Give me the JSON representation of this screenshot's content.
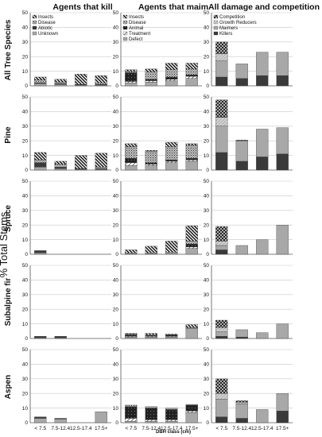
{
  "figure": {
    "ylabel": "% Total Stems",
    "xlabel": "DBH class (cm)"
  },
  "chart_data": {
    "type": "bar",
    "stacked": true,
    "categories": [
      "< 7.5",
      "7.5-12.4",
      "12.5-17.4",
      "17.5+"
    ],
    "ylim": [
      0,
      50
    ],
    "yticks": [
      0,
      10,
      20,
      30,
      40,
      50
    ],
    "grid": true,
    "xlabel": "DBH class (cm)",
    "ylabel": "% Total Stems",
    "columns": [
      {
        "title": "Agents that kill",
        "legend": [
          "Insects",
          "Disease",
          "Abiotic",
          "Unknown"
        ],
        "series_keys": [
          "Unknown",
          "Abiotic",
          "Disease",
          "Insects"
        ]
      },
      {
        "title": "Agents that maim",
        "legend": [
          "Insects",
          "Disease",
          "Animal",
          "Treatment",
          "Defect"
        ],
        "series_keys": [
          "Defect",
          "Treatment",
          "Animal",
          "Disease",
          "Insects"
        ]
      },
      {
        "title": "All damage and competition",
        "legend": [
          "Competition",
          "Growth Reducers",
          "Maimers",
          "Killers"
        ],
        "series_keys": [
          "Killers",
          "Maimers",
          "Growth Reducers",
          "Competition"
        ]
      }
    ],
    "rows": [
      {
        "species": "All Tree Species",
        "panels": [
          {
            "series": [
              {
                "name": "Unknown",
                "values": [
                  1.5,
                  1,
                  0.5,
                  0.5
                ]
              },
              {
                "name": "Abiotic",
                "values": [
                  0.5,
                  0.5,
                  0.5,
                  0.5
                ]
              },
              {
                "name": "Disease",
                "values": [
                  2,
                  1,
                  0,
                  1
                ]
              },
              {
                "name": "Insects",
                "values": [
                  2,
                  2,
                  7,
                  5
                ]
              }
            ]
          },
          {
            "series": [
              {
                "name": "Defect",
                "values": [
                  2,
                  2.5,
                  3.5,
                  5
                ]
              },
              {
                "name": "Treatment",
                "values": [
                  1,
                  1,
                  1,
                  1.5
                ]
              },
              {
                "name": "Animal",
                "values": [
                  6,
                  1,
                  1.5,
                  1
                ]
              },
              {
                "name": "Disease",
                "values": [
                  1,
                  5,
                  5,
                  4
                ]
              },
              {
                "name": "Insects",
                "values": [
                  1,
                  2,
                  4.5,
                  4
                ]
              }
            ]
          },
          {
            "series": [
              {
                "name": "Killers",
                "values": [
                  6,
                  5,
                  7,
                  7
                ]
              },
              {
                "name": "Maimers",
                "values": [
                  11,
                  10,
                  16,
                  16
                ]
              },
              {
                "name": "Growth Reducers",
                "values": [
                  5,
                  0,
                  0,
                  0
                ]
              },
              {
                "name": "Competition",
                "values": [
                  8,
                  0,
                  0,
                  0
                ]
              }
            ]
          }
        ]
      },
      {
        "species": "Pine",
        "panels": [
          {
            "series": [
              {
                "name": "Unknown",
                "values": [
                  2,
                  1,
                  0.5,
                  0.5
                ]
              },
              {
                "name": "Abiotic",
                "values": [
                  3,
                  1,
                  0.5,
                  0.5
                ]
              },
              {
                "name": "Disease",
                "values": [
                  2,
                  2,
                  0,
                  1
                ]
              },
              {
                "name": "Insects",
                "values": [
                  5,
                  2,
                  9,
                  9.5
                ]
              }
            ]
          },
          {
            "series": [
              {
                "name": "Defect",
                "values": [
                  3,
                  3,
                  5,
                  6
                ]
              },
              {
                "name": "Treatment",
                "values": [
                  2,
                  1,
                  1,
                  1
                ]
              },
              {
                "name": "Animal",
                "values": [
                  3,
                  1,
                  1,
                  1
                ]
              },
              {
                "name": "Disease",
                "values": [
                  8,
                  8,
                  9,
                  9
                ]
              },
              {
                "name": "Insects",
                "values": [
                  2,
                  0.5,
                  3,
                  1
                ]
              }
            ]
          },
          {
            "series": [
              {
                "name": "Killers",
                "values": [
                  12,
                  6,
                  9,
                  11
                ]
              },
              {
                "name": "Maimers",
                "values": [
                  18,
                  14,
                  19,
                  18
                ]
              },
              {
                "name": "Growth Reducers",
                "values": [
                  6,
                  0,
                  0,
                  0
                ]
              },
              {
                "name": "Competition",
                "values": [
                  12,
                  0.5,
                  0,
                  0
                ]
              }
            ]
          }
        ]
      },
      {
        "species": "Spruce",
        "panels": [
          {
            "series": [
              {
                "name": "Unknown",
                "values": [
                  1,
                  0,
                  0,
                  0
                ]
              },
              {
                "name": "Abiotic",
                "values": [
                  1.5,
                  0,
                  0,
                  0
                ]
              },
              {
                "name": "Disease",
                "values": [
                  0,
                  0,
                  0,
                  0
                ]
              },
              {
                "name": "Insects",
                "values": [
                  0,
                  0,
                  0,
                  0
                ]
              }
            ]
          },
          {
            "series": [
              {
                "name": "Defect",
                "values": [
                  0.5,
                  0.5,
                  1,
                  4
                ]
              },
              {
                "name": "Treatment",
                "values": [
                  0.5,
                  0.5,
                  0.5,
                  1
                ]
              },
              {
                "name": "Animal",
                "values": [
                  0,
                  0,
                  0,
                  2
                ]
              },
              {
                "name": "Disease",
                "values": [
                  0,
                  0,
                  0,
                  2
                ]
              },
              {
                "name": "Insects",
                "values": [
                  2,
                  4.5,
                  7.5,
                  10.5
                ]
              }
            ]
          },
          {
            "series": [
              {
                "name": "Killers",
                "values": [
                  3,
                  0,
                  0,
                  0
                ]
              },
              {
                "name": "Maimers",
                "values": [
                  3,
                  6,
                  10,
                  20
                ]
              },
              {
                "name": "Growth Reducers",
                "values": [
                  3,
                  0,
                  0,
                  0
                ]
              },
              {
                "name": "Competition",
                "values": [
                  10,
                  0,
                  0,
                  0
                ]
              }
            ]
          }
        ]
      },
      {
        "species": "Subalpine fir",
        "panels": [
          {
            "series": [
              {
                "name": "Unknown",
                "values": [
                  0.5,
                  0.5,
                  0,
                  0
                ]
              },
              {
                "name": "Abiotic",
                "values": [
                  1,
                  1,
                  0,
                  0
                ]
              },
              {
                "name": "Disease",
                "values": [
                  0,
                  0,
                  0,
                  0
                ]
              },
              {
                "name": "Insects",
                "values": [
                  0,
                  0,
                  0,
                  0
                ]
              }
            ]
          },
          {
            "series": [
              {
                "name": "Defect",
                "values": [
                  1,
                  1,
                  1,
                  7
                ]
              },
              {
                "name": "Treatment",
                "values": [
                  0.5,
                  0.5,
                  0.5,
                  0
                ]
              },
              {
                "name": "Animal",
                "values": [
                  1,
                  0.5,
                  1,
                  0
                ]
              },
              {
                "name": "Disease",
                "values": [
                  0.5,
                  0.5,
                  0,
                  0.5
                ]
              },
              {
                "name": "Insects",
                "values": [
                  0.5,
                  1,
                  0.5,
                  2
                ]
              }
            ]
          },
          {
            "series": [
              {
                "name": "Killers",
                "values": [
                  1.5,
                  1,
                  0,
                  0
                ]
              },
              {
                "name": "Maimers",
                "values": [
                  3,
                  5,
                  4,
                  10
                ]
              },
              {
                "name": "Growth Reducers",
                "values": [
                  3,
                  0,
                  0,
                  0
                ]
              },
              {
                "name": "Competition",
                "values": [
                  5,
                  0,
                  0,
                  0
                ]
              }
            ]
          }
        ]
      },
      {
        "species": "Aspen",
        "panels": [
          {
            "series": [
              {
                "name": "Unknown",
                "values": [
                  3,
                  2.5,
                  0,
                  7.5
                ]
              },
              {
                "name": "Abiotic",
                "values": [
                  1,
                  0.5,
                  0,
                  0
                ]
              },
              {
                "name": "Disease",
                "values": [
                  0,
                  0,
                  0,
                  0
                ]
              },
              {
                "name": "Insects",
                "values": [
                  0,
                  0,
                  0,
                  0
                ]
              }
            ]
          },
          {
            "series": [
              {
                "name": "Defect",
                "values": [
                  1,
                  1,
                  1,
                  7
                ]
              },
              {
                "name": "Treatment",
                "values": [
                  2,
                  1,
                  1,
                  1
                ]
              },
              {
                "name": "Animal",
                "values": [
                  8,
                  8,
                  7,
                  4
                ]
              },
              {
                "name": "Disease",
                "values": [
                  1,
                  1,
                  1,
                  0.5
                ]
              },
              {
                "name": "Insects",
                "values": [
                  0,
                  0,
                  0,
                  0
                ]
              }
            ]
          },
          {
            "series": [
              {
                "name": "Killers",
                "values": [
                  4,
                  3,
                  0,
                  8
                ]
              },
              {
                "name": "Maimers",
                "values": [
                  12,
                  10,
                  9,
                  12
                ]
              },
              {
                "name": "Growth Reducers",
                "values": [
                  4,
                  1,
                  0,
                  0
                ]
              },
              {
                "name": "Competition",
                "values": [
                  10,
                  1,
                  0,
                  0
                ]
              }
            ]
          }
        ]
      }
    ]
  },
  "colors": {
    "dark": "#3a3a3a",
    "light_gray": "#a8a8a8",
    "gridline": "#c8c8c8",
    "axis": "#555555"
  }
}
